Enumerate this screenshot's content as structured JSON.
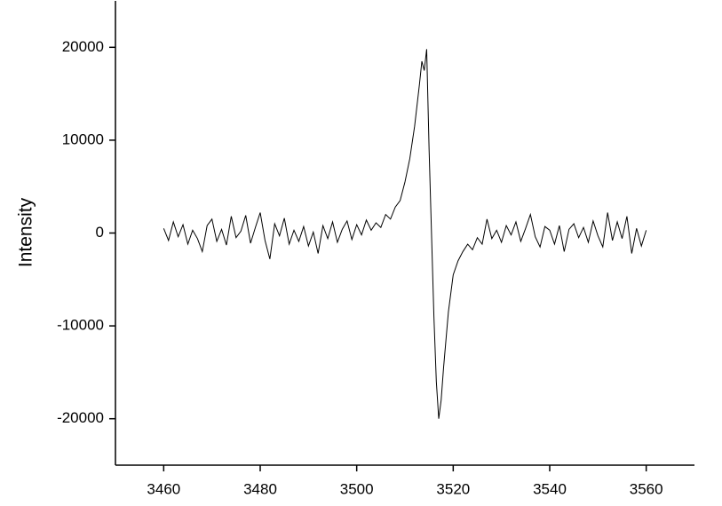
{
  "chart_data": {
    "type": "line",
    "y_label": "Intensity",
    "color": "#000000",
    "xlim": [
      3450,
      3570
    ],
    "xticks": [
      3460,
      3480,
      3500,
      3520,
      3540,
      3560
    ],
    "ylim": [
      -25000,
      25000
    ],
    "yticks": [
      -20000,
      -10000,
      0,
      10000,
      20000
    ],
    "x": [
      3460,
      3461,
      3462,
      3463,
      3464,
      3465,
      3466,
      3467,
      3468,
      3469,
      3470,
      3471,
      3472,
      3473,
      3474,
      3475,
      3476,
      3477,
      3478,
      3479,
      3480,
      3481,
      3482,
      3483,
      3484,
      3485,
      3486,
      3487,
      3488,
      3489,
      3490,
      3491,
      3492,
      3493,
      3494,
      3495,
      3496,
      3497,
      3498,
      3499,
      3500,
      3501,
      3502,
      3503,
      3504,
      3505,
      3506,
      3507,
      3508,
      3509,
      3510,
      3511,
      3512,
      3513,
      3513.5,
      3514,
      3514.5,
      3515,
      3515.5,
      3516,
      3516.5,
      3517,
      3517.5,
      3518,
      3519,
      3520,
      3521,
      3522,
      3523,
      3524,
      3525,
      3526,
      3527,
      3528,
      3529,
      3530,
      3531,
      3532,
      3533,
      3534,
      3535,
      3536,
      3537,
      3538,
      3539,
      3540,
      3541,
      3542,
      3543,
      3544,
      3545,
      3546,
      3547,
      3548,
      3549,
      3550,
      3551,
      3552,
      3553,
      3554,
      3555,
      3556,
      3557,
      3558,
      3559,
      3560
    ],
    "values": [
      500,
      -800,
      1200,
      -400,
      900,
      -1200,
      300,
      -600,
      -2000,
      800,
      1500,
      -900,
      400,
      -1300,
      1800,
      -500,
      200,
      1900,
      -1100,
      600,
      2200,
      -800,
      -2800,
      1000,
      -300,
      1600,
      -1200,
      300,
      -900,
      700,
      -1400,
      100,
      -2200,
      800,
      -600,
      1200,
      -1000,
      400,
      1300,
      -700,
      900,
      -200,
      1400,
      300,
      1100,
      600,
      2000,
      1500,
      2800,
      3500,
      5500,
      8000,
      11500,
      16000,
      18500,
      17500,
      19800,
      9000,
      0,
      -9000,
      -16000,
      -20000,
      -18000,
      -14500,
      -8500,
      -4500,
      -3000,
      -2000,
      -1200,
      -1800,
      -500,
      -1200,
      1500,
      -600,
      300,
      -1000,
      800,
      -200,
      1200,
      -900,
      500,
      2000,
      -400,
      -1500,
      700,
      300,
      -1200,
      800,
      -2000,
      400,
      1000,
      -500,
      600,
      -1000,
      1300,
      -300,
      -1500,
      2200,
      -800,
      1200,
      -600,
      1800,
      -2200,
      500,
      -1400,
      300
    ]
  }
}
